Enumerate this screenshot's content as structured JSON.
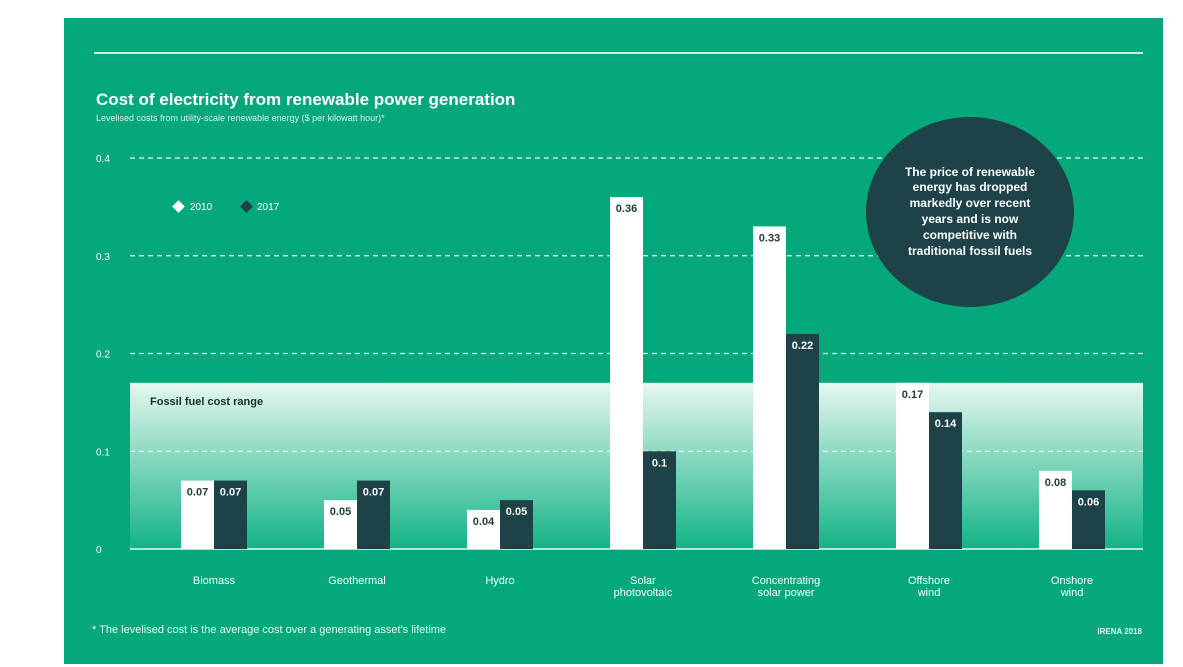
{
  "header": {
    "title": "Cost of electricity from renewable power generation",
    "subtitle": "Levelised costs from utility-scale renewable energy ($ per kilowatt hour)*"
  },
  "callout": {
    "text": "The price of renewable energy has dropped markedly over recent years and is now competitive with traditional fossil fuels"
  },
  "footer": {
    "footnote": "* The levelised cost is the average cost over a generating asset's lifetime",
    "source": "IRENA 2018"
  },
  "colors": {
    "background": "#05a87a",
    "series_2010": "#ffffff",
    "series_2017": "#1d4247",
    "callout_bg": "#1d4247",
    "gridline": "#e8f8f1"
  },
  "chart_data": {
    "type": "bar",
    "categories": [
      "Biomass",
      "Geothermal",
      "Hydro",
      "Solar photovoltaic",
      "Concentrating solar power",
      "Offshore wind",
      "Onshore wind"
    ],
    "series": [
      {
        "name": "2010",
        "values": [
          0.07,
          0.05,
          0.04,
          0.36,
          0.33,
          0.17,
          0.08
        ],
        "labels": [
          "0.07",
          "0.05",
          "0.04",
          "0.36",
          "0.33",
          "0.17",
          "0.08"
        ]
      },
      {
        "name": "2017",
        "values": [
          0.07,
          0.07,
          0.05,
          0.1,
          0.22,
          0.14,
          0.06
        ],
        "labels": [
          "0.07",
          "0.07",
          "0.05",
          "0.1",
          "0.22",
          "0.14",
          "0.06"
        ]
      }
    ],
    "yticks": [
      0,
      0.1,
      0.2,
      0.3,
      0.4
    ],
    "ytick_labels": [
      "0",
      "0.1",
      "0.2",
      "0.3",
      "0.4"
    ],
    "ylim": [
      0,
      0.4
    ],
    "grid": true,
    "legend_position": "top-left",
    "band": {
      "label": "Fossil fuel cost range",
      "min": 0,
      "max": 0.17
    }
  }
}
